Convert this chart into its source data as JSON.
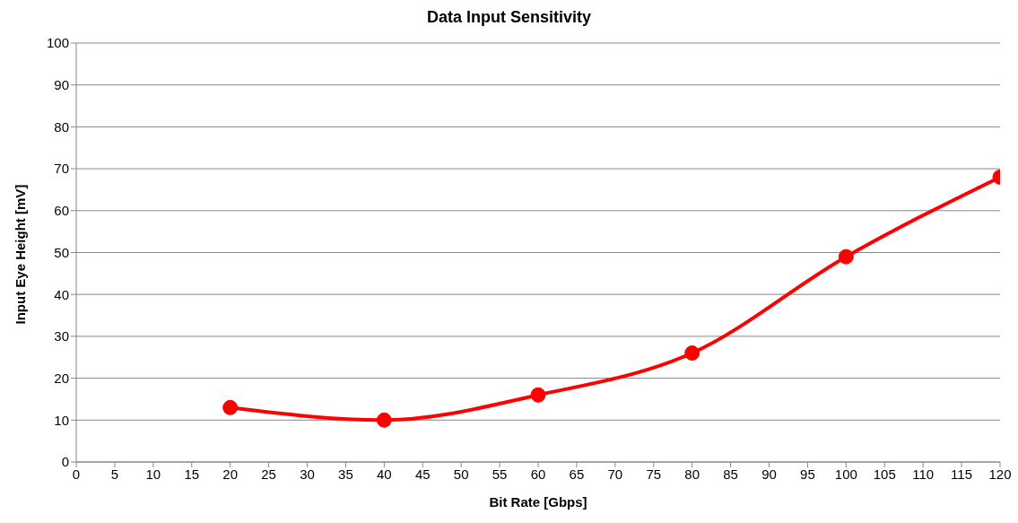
{
  "chart_data": {
    "type": "line",
    "title": "Data Input Sensitivity",
    "xlabel": "Bit Rate [Gbps]",
    "ylabel": "Input Eye Height [mV]",
    "x": [
      20,
      40,
      60,
      80,
      100,
      120
    ],
    "series": [
      {
        "color": "#ff0000",
        "values": [
          13,
          10,
          16,
          26,
          49,
          68
        ]
      }
    ],
    "xlim": [
      0,
      120
    ],
    "xticks": [
      0,
      5,
      10,
      15,
      20,
      25,
      30,
      35,
      40,
      45,
      50,
      55,
      60,
      65,
      70,
      75,
      80,
      85,
      90,
      95,
      100,
      105,
      110,
      115,
      120
    ],
    "ylim": [
      0,
      100
    ],
    "yticks": [
      0,
      10,
      20,
      30,
      40,
      50,
      60,
      70,
      80,
      90,
      100
    ],
    "grid": "y",
    "marker": "circle",
    "line_style": "solid"
  }
}
